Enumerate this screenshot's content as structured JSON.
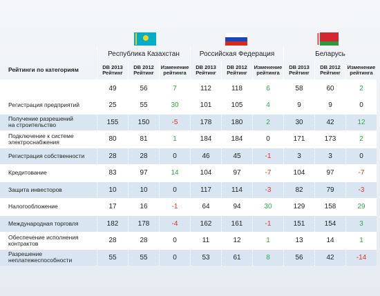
{
  "header": {
    "category_header": "Рейтинги по категориям",
    "countries": [
      "Республика Казахстан",
      "Российская Федерация",
      "Беларусь"
    ],
    "subheaders": [
      [
        "DB 2013",
        "Рейтинг"
      ],
      [
        "DB 2012",
        "Рейтинг"
      ],
      [
        "Изменение",
        "рейтинга"
      ]
    ]
  },
  "table": {
    "total": [
      49,
      56,
      7,
      112,
      118,
      6,
      58,
      60,
      2
    ],
    "rows": [
      {
        "label": [
          "Регистрация предприятий"
        ],
        "values": [
          25,
          55,
          30,
          101,
          105,
          4,
          9,
          9,
          0
        ]
      },
      {
        "label": [
          "Получение разрешений",
          "на строительство"
        ],
        "values": [
          155,
          150,
          -5,
          178,
          180,
          2,
          30,
          42,
          12
        ]
      },
      {
        "label": [
          "Подключение к системе",
          "электроснабжения"
        ],
        "values": [
          80,
          81,
          1,
          184,
          184,
          0,
          171,
          173,
          2
        ]
      },
      {
        "label": [
          "Регистрация собственности"
        ],
        "values": [
          28,
          28,
          0,
          46,
          45,
          -1,
          3,
          3,
          0
        ]
      },
      {
        "label": [
          "Кредитование"
        ],
        "values": [
          83,
          97,
          14,
          104,
          97,
          -7,
          104,
          97,
          -7
        ]
      },
      {
        "label": [
          "Защита инвесторов"
        ],
        "values": [
          10,
          10,
          0,
          117,
          114,
          -3,
          82,
          79,
          -3
        ]
      },
      {
        "label": [
          "Налогообложение"
        ],
        "values": [
          17,
          16,
          -1,
          64,
          94,
          30,
          129,
          158,
          29
        ]
      },
      {
        "label": [
          "Международная торговля"
        ],
        "values": [
          182,
          178,
          -4,
          162,
          161,
          -1,
          151,
          154,
          3
        ]
      },
      {
        "label": [
          "Обеспечение исполнения",
          "контрактов"
        ],
        "values": [
          28,
          28,
          0,
          11,
          12,
          1,
          13,
          14,
          1
        ]
      },
      {
        "label": [
          "Разрешение",
          "неплатежеспособности"
        ],
        "values": [
          55,
          55,
          0,
          53,
          61,
          8,
          56,
          42,
          -14
        ]
      }
    ]
  }
}
